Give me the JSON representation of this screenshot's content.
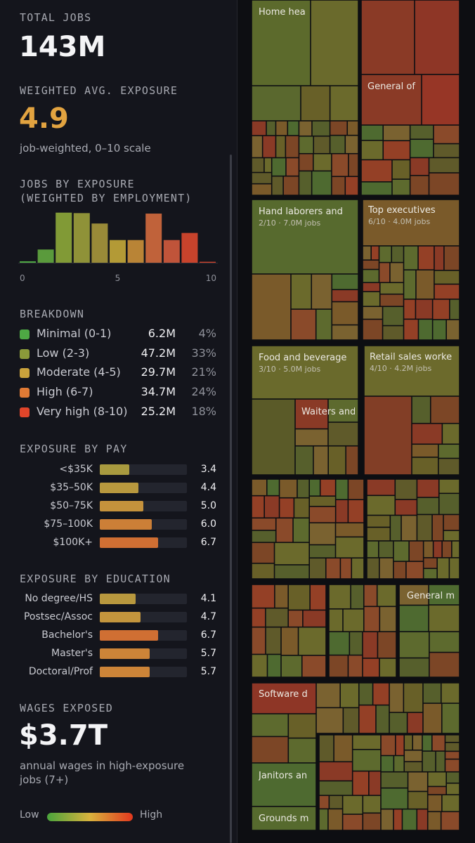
{
  "summary": {
    "total_jobs_label": "TOTAL JOBS",
    "total_jobs": "143M",
    "avg_label": "WEIGHTED AVG. EXPOSURE",
    "avg_value": "4.9",
    "avg_sub": "job-weighted, 0–10 scale"
  },
  "histogram": {
    "title_line1": "JOBS BY EXPOSURE",
    "title_line2": "(WEIGHTED BY EMPLOYMENT)"
  },
  "breakdown": {
    "title": "BREAKDOWN",
    "rows": [
      {
        "name": "Minimal (0-1)",
        "value": "6.2M",
        "pct": "4%",
        "color": "#4ea844"
      },
      {
        "name": "Low (2-3)",
        "value": "47.2M",
        "pct": "33%",
        "color": "#8a9a3a"
      },
      {
        "name": "Moderate (4-5)",
        "value": "29.7M",
        "pct": "21%",
        "color": "#c9a23c"
      },
      {
        "name": "High (6-7)",
        "value": "34.7M",
        "pct": "24%",
        "color": "#e07a35"
      },
      {
        "name": "Very high (8-10)",
        "value": "25.2M",
        "pct": "18%",
        "color": "#e0452a"
      }
    ]
  },
  "pay": {
    "title": "EXPOSURE BY PAY",
    "rows": [
      {
        "label": "<$35K",
        "value": "3.4",
        "score": 3.4,
        "color": "#a89a3f"
      },
      {
        "label": "$35–50K",
        "value": "4.4",
        "score": 4.4,
        "color": "#b8983e"
      },
      {
        "label": "$50–75K",
        "value": "5.0",
        "score": 5.0,
        "color": "#c5923c"
      },
      {
        "label": "$75–100K",
        "value": "6.0",
        "score": 6.0,
        "color": "#cc7f37"
      },
      {
        "label": "$100K+",
        "value": "6.7",
        "score": 6.7,
        "color": "#d06f33"
      }
    ]
  },
  "education": {
    "title": "EXPOSURE BY EDUCATION",
    "rows": [
      {
        "label": "No degree/HS",
        "value": "4.1",
        "score": 4.1,
        "color": "#b8983e"
      },
      {
        "label": "Postsec/Assoc",
        "value": "4.7",
        "score": 4.7,
        "color": "#c3953d"
      },
      {
        "label": "Bachelor's",
        "value": "6.7",
        "score": 6.7,
        "color": "#d06f33"
      },
      {
        "label": "Master's",
        "value": "5.7",
        "score": 5.7,
        "color": "#cc8438"
      },
      {
        "label": "Doctoral/Prof",
        "value": "5.7",
        "score": 5.7,
        "color": "#cc8438"
      }
    ]
  },
  "wages": {
    "title": "WAGES EXPOSED",
    "value": "$3.7T",
    "sub1": "annual wages in high-exposure",
    "sub2": "jobs (7+)"
  },
  "legend": {
    "low": "Low",
    "high": "High"
  },
  "chart_data": {
    "type": "bar",
    "title": "JOBS BY EXPOSURE (WEIGHTED BY EMPLOYMENT)",
    "categories": [
      "0",
      "1",
      "2",
      "3",
      "4",
      "5",
      "6",
      "7",
      "8",
      "9",
      "10"
    ],
    "values": [
      0.3,
      2.8,
      10.6,
      10.5,
      8.3,
      4.8,
      4.8,
      10.4,
      4.8,
      6.3,
      0.2
    ],
    "unit": "M jobs (estimated)",
    "colors": [
      "#4ea844",
      "#5a9a3c",
      "#819a36",
      "#8f9238",
      "#998a38",
      "#b39a36",
      "#b98436",
      "#c0623a",
      "#c0543a",
      "#c8432c",
      "#d0432b"
    ],
    "xticks": [
      "0",
      "5",
      "10"
    ],
    "ylim": [
      0,
      11
    ]
  },
  "treemap": {
    "labels": [
      {
        "title": "Home hea",
        "sub": ""
      },
      {
        "title": "General of",
        "sub": ""
      },
      {
        "title": "Hand laborers and",
        "sub": "2/10 · 7.0M jobs"
      },
      {
        "title": "Top executives",
        "sub": "6/10 · 4.0M jobs"
      },
      {
        "title": "Food and beverage",
        "sub": "3/10 · 5.0M jobs"
      },
      {
        "title": "Retail sales worke",
        "sub": "4/10 · 4.2M jobs"
      },
      {
        "title": "Waiters and",
        "sub": ""
      },
      {
        "title": "General m",
        "sub": ""
      },
      {
        "title": "Software d",
        "sub": ""
      },
      {
        "title": "Janitors an",
        "sub": ""
      },
      {
        "title": "Grounds m",
        "sub": ""
      }
    ]
  }
}
